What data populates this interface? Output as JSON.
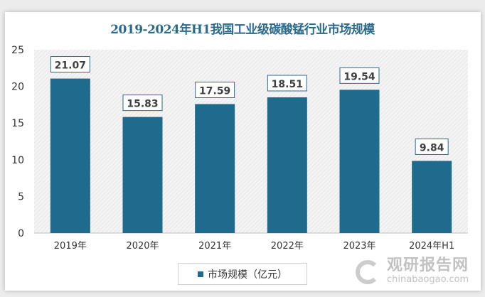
{
  "chart_data": {
    "type": "bar",
    "title": "2019-2024年H1我国工业级碳酸锰行业市场规模",
    "categories": [
      "2019年",
      "2020年",
      "2021年",
      "2022年",
      "2023年",
      "2024年H1"
    ],
    "series": [
      {
        "name": "市场规模（亿元）",
        "values": [
          21.07,
          15.83,
          17.59,
          18.51,
          19.54,
          9.84
        ]
      }
    ],
    "value_labels": [
      "21.07",
      "15.83",
      "17.59",
      "18.51",
      "19.54",
      "9.84"
    ],
    "yticks": [
      "0",
      "5",
      "10",
      "15",
      "20",
      "25"
    ],
    "ylim": [
      0,
      25
    ],
    "xlabel": "",
    "ylabel": "",
    "grid": false,
    "legend": "bottom",
    "bar_color": "#1f6b8e"
  },
  "watermark": {
    "cn": "观研报告网",
    "en": "chinabaogao.com"
  }
}
